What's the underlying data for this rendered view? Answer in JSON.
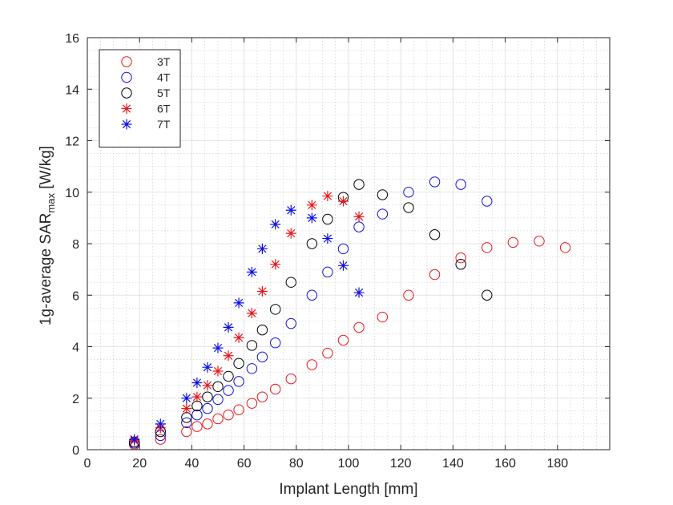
{
  "chart_data": {
    "type": "scatter",
    "title": "",
    "xlabel": "Implant Length [mm]",
    "ylabel_main": "1g-average SAR",
    "ylabel_sub": "max",
    "ylabel_unit": " [W/kg]",
    "xlim": [
      0,
      200
    ],
    "ylim": [
      0,
      16
    ],
    "xticks": [
      0,
      20,
      40,
      60,
      80,
      100,
      120,
      140,
      160,
      180
    ],
    "yticks": [
      0,
      2,
      4,
      6,
      8,
      10,
      12,
      14,
      16
    ],
    "grid": true,
    "minor_grid": true,
    "legend_position": "top-left",
    "series": [
      {
        "name": "3T",
        "marker": "circle",
        "color": "#e8161c",
        "x": [
          18,
          28,
          38,
          42,
          46,
          50,
          54,
          58,
          63,
          67,
          72,
          78,
          86,
          92,
          98,
          104,
          113,
          123,
          133,
          143,
          153,
          163,
          173,
          183
        ],
        "y": [
          0.2,
          0.4,
          0.7,
          0.9,
          1.0,
          1.2,
          1.35,
          1.55,
          1.8,
          2.05,
          2.35,
          2.75,
          3.3,
          3.75,
          4.25,
          4.75,
          5.15,
          6.0,
          6.8,
          7.45,
          7.85,
          8.05,
          8.1,
          7.85
        ]
      },
      {
        "name": "4T",
        "marker": "circle",
        "color": "#0f0fe6",
        "x": [
          18,
          28,
          38,
          42,
          46,
          50,
          54,
          58,
          63,
          67,
          72,
          78,
          86,
          92,
          98,
          104,
          113,
          123,
          133,
          143,
          153
        ],
        "y": [
          0.25,
          0.55,
          1.05,
          1.35,
          1.6,
          1.95,
          2.3,
          2.65,
          3.15,
          3.6,
          4.15,
          4.9,
          6.0,
          6.9,
          7.8,
          8.65,
          9.15,
          10.0,
          10.4,
          10.3,
          9.65
        ]
      },
      {
        "name": "5T",
        "marker": "circle",
        "color": "#000000",
        "x": [
          18,
          28,
          38,
          42,
          46,
          50,
          54,
          58,
          63,
          67,
          72,
          78,
          86,
          92,
          98,
          104,
          113,
          123,
          133,
          143,
          153
        ],
        "y": [
          0.3,
          0.7,
          1.25,
          1.7,
          2.05,
          2.45,
          2.85,
          3.35,
          4.05,
          4.65,
          5.45,
          6.5,
          8.0,
          8.95,
          9.8,
          10.3,
          9.9,
          9.4,
          8.35,
          7.2,
          6.0
        ]
      },
      {
        "name": "6T",
        "marker": "star",
        "color": "#e8161c",
        "x": [
          18,
          28,
          38,
          42,
          46,
          50,
          54,
          58,
          63,
          67,
          72,
          78,
          86,
          92,
          98,
          104
        ],
        "y": [
          0.35,
          0.85,
          1.6,
          2.05,
          2.5,
          3.05,
          3.65,
          4.35,
          5.3,
          6.15,
          7.2,
          8.4,
          9.5,
          9.85,
          9.65,
          9.05
        ]
      },
      {
        "name": "7T",
        "marker": "star",
        "color": "#0f0fe6",
        "x": [
          18,
          28,
          38,
          42,
          46,
          50,
          54,
          58,
          63,
          67,
          72,
          78,
          86,
          92,
          98,
          104
        ],
        "y": [
          0.4,
          1.0,
          2.0,
          2.6,
          3.2,
          3.95,
          4.75,
          5.7,
          6.9,
          7.8,
          8.75,
          9.3,
          9.0,
          8.2,
          7.15,
          6.1
        ]
      }
    ]
  }
}
